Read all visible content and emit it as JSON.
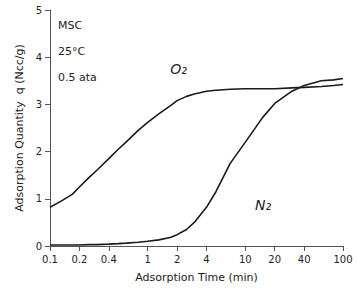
{
  "chart_data": {
    "type": "line",
    "xlabel": "Adsorption Time (min)",
    "ylabel": "Adsorption Quantity  q (Ncc/g)",
    "log": "x",
    "xlim": [
      0.1,
      100
    ],
    "xticks": [
      0.1,
      0.2,
      0.4,
      1,
      2,
      4,
      10,
      20,
      40,
      100
    ],
    "ylim": [
      0,
      5
    ],
    "yticks": [
      0,
      1,
      2,
      3,
      4,
      5
    ],
    "grid": false,
    "annotations": [
      "MSC",
      "25°C",
      "0.5 ata"
    ],
    "x": [
      0.1,
      0.13,
      0.17,
      0.2,
      0.25,
      0.3,
      0.4,
      0.5,
      0.6,
      0.8,
      1.0,
      1.3,
      1.7,
      2.0,
      2.5,
      3.0,
      4.0,
      5.0,
      7.0,
      10.0,
      15.0,
      20.0,
      30.0,
      40.0,
      60.0,
      80.0,
      100.0
    ],
    "series": [
      {
        "name": "O₂",
        "color": "#1a1a1a",
        "values": [
          0.82,
          0.95,
          1.1,
          1.25,
          1.45,
          1.6,
          1.85,
          2.05,
          2.2,
          2.45,
          2.62,
          2.8,
          2.97,
          3.08,
          3.17,
          3.22,
          3.28,
          3.3,
          3.32,
          3.33,
          3.33,
          3.33,
          3.35,
          3.36,
          3.38,
          3.4,
          3.42
        ]
      },
      {
        "name": "N₂",
        "color": "#1a1a1a",
        "values": [
          0.02,
          0.02,
          0.02,
          0.02,
          0.03,
          0.03,
          0.04,
          0.05,
          0.06,
          0.08,
          0.1,
          0.13,
          0.18,
          0.24,
          0.35,
          0.5,
          0.82,
          1.15,
          1.75,
          2.2,
          2.72,
          3.02,
          3.28,
          3.4,
          3.5,
          3.52,
          3.55
        ]
      }
    ]
  }
}
